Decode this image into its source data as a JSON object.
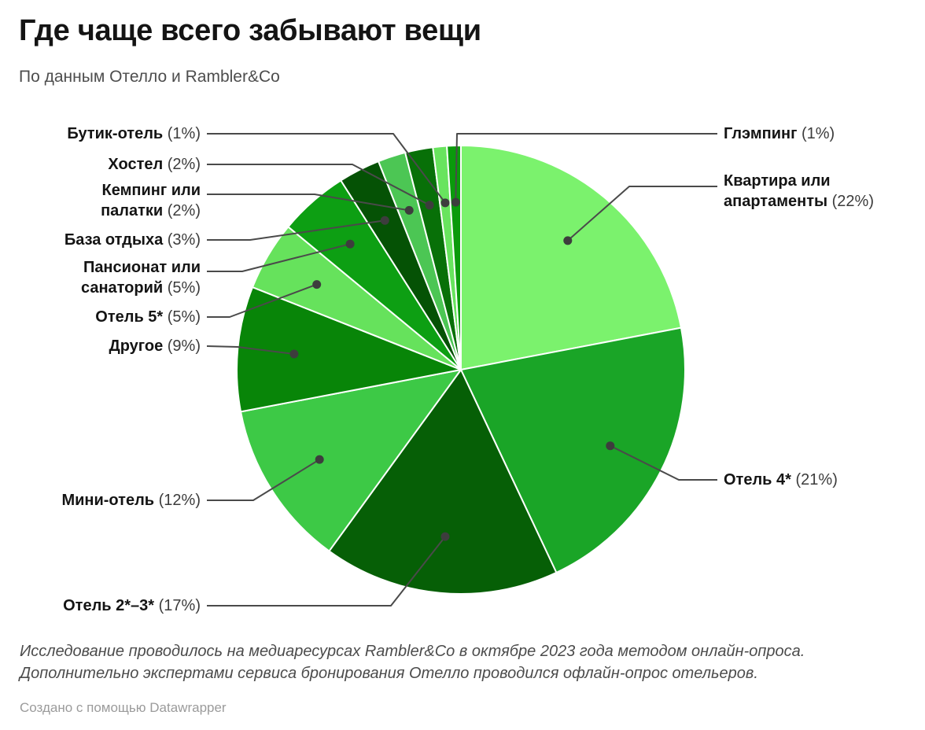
{
  "header": {
    "title": "Где чаще всего забывают вещи",
    "subtitle": "По данным Отелло и Rambler&Co"
  },
  "chart_data": {
    "type": "pie",
    "title": "Где чаще всего забывают вещи",
    "source": "По данным Отелло и Rambler&Co",
    "unit": "%",
    "direction": "clockwise",
    "start_angle_deg": 0,
    "slices": [
      {
        "id": "kvartira",
        "label": "Квартира или апартаменты",
        "value": 22,
        "color": "#7bf26d"
      },
      {
        "id": "otel4",
        "label": "Отель 4*",
        "value": 21,
        "color": "#1aa527"
      },
      {
        "id": "otel23",
        "label": "Отель 2*–3*",
        "value": 17,
        "color": "#065f06"
      },
      {
        "id": "mini",
        "label": "Мини-отель",
        "value": 12,
        "color": "#3dc946"
      },
      {
        "id": "drugoe",
        "label": "Другое",
        "value": 9,
        "color": "#088508"
      },
      {
        "id": "otel5",
        "label": "Отель 5*",
        "value": 5,
        "color": "#66e25c"
      },
      {
        "id": "pansionat",
        "label": "Пансионат или санаторий",
        "value": 5,
        "color": "#0d9f13"
      },
      {
        "id": "baza",
        "label": "База отдыха",
        "value": 3,
        "color": "#055205"
      },
      {
        "id": "kemping",
        "label": "Кемпинг или палатки",
        "value": 2,
        "color": "#4cc654"
      },
      {
        "id": "hostel",
        "label": "Хостел",
        "value": 2,
        "color": "#087008"
      },
      {
        "id": "butik",
        "label": "Бутик-отель",
        "value": 1,
        "color": "#68e45e"
      },
      {
        "id": "glamping",
        "label": "Глэмпинг",
        "value": 1,
        "color": "#0a9a0b"
      }
    ],
    "connector_color": "#4a4a4a",
    "dot_color": "#3d3d3d"
  },
  "footer": {
    "note": "Исследование проводилось на медиаресурсах Rambler&Co в октябре 2023 года методом онлайн-опроса. Дополнительно экспертами сервиса бронирования Отелло проводился офлайн-опрос отельеров.",
    "credit_prefix": "Создано с помощью",
    "credit_link": "Datawrapper"
  }
}
